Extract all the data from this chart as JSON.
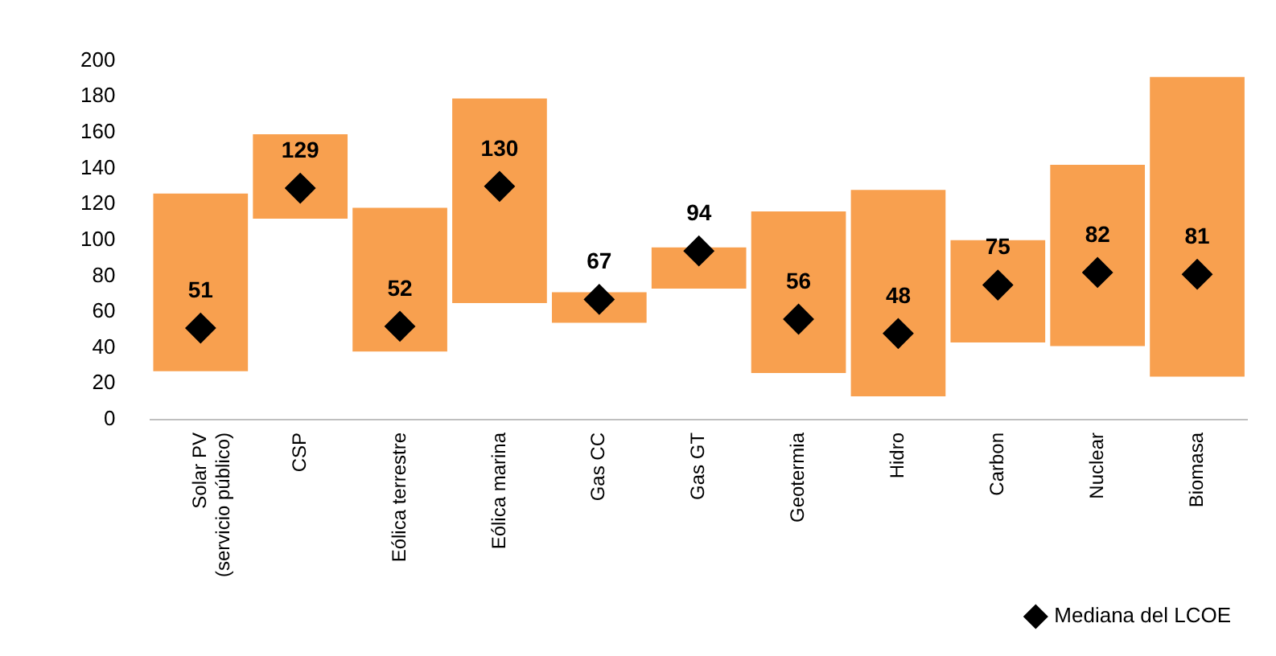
{
  "chart_data": {
    "type": "bar",
    "categories": [
      "Solar PV (servicio público)",
      "CSP",
      "Eólica terrestre",
      "Eólica marina",
      "Gas CC",
      "Gas GT",
      "Geotermia",
      "Hidro",
      "Carbon",
      "Nuclear",
      "Biomasa"
    ],
    "series": [
      {
        "color": "#f8a04f",
        "base": [
          27,
          112,
          38,
          65,
          54,
          73,
          26,
          13,
          43,
          41,
          24
        ],
        "values": [
          99,
          47,
          80,
          114,
          17,
          23,
          90,
          115,
          57,
          101,
          167
        ]
      },
      {
        "type": "scatter",
        "name": "Mediana del LCOE",
        "color": "#000000",
        "marker": "diamond",
        "values": [
          51,
          129,
          52,
          130,
          67,
          94,
          56,
          48,
          75,
          82,
          81
        ],
        "value_labels": [
          "51",
          "129",
          "52",
          "130",
          "67",
          "94",
          "56",
          "48",
          "75",
          "82",
          "81"
        ]
      }
    ],
    "ylim": [
      0,
      200
    ],
    "yticks": [
      0,
      20,
      40,
      60,
      80,
      100,
      120,
      140,
      160,
      180,
      200
    ],
    "grid": false,
    "legend": "bottom right"
  }
}
